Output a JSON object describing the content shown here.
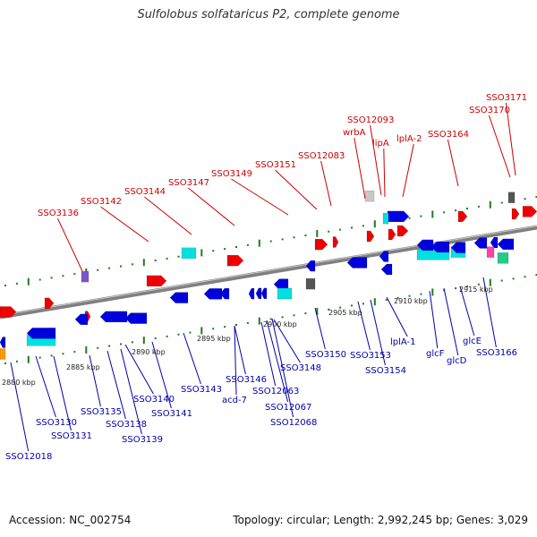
{
  "title": "Sulfolobus solfataricus P2, complete genome",
  "footer": {
    "accession": "Accession: NC_002754",
    "summary": "Topology: circular; Length: 2,992,245 bp; Genes: 3,029"
  },
  "colors": {
    "forward_label": "#cc0000",
    "reverse_label": "#0000aa",
    "backbone": "#808080",
    "tick": "#1f7a1f"
  },
  "scale_labels": [
    "2880 kbp",
    "2885 kbp",
    "2890 kbp",
    "2895 kbp",
    "2900 kbp",
    "2905 kbp",
    "2910 kbp",
    "2915 kbp"
  ],
  "forward_labels": [
    "SSO3136",
    "SSO3142",
    "SSO3144",
    "SSO3147",
    "SSO3149",
    "SSO3151",
    "SSO12083",
    "SSO12093",
    "wrbA",
    "lipA",
    "lplA-2",
    "SSO3164",
    "SSO3170",
    "SSO3171"
  ],
  "reverse_labels": [
    "SSO12018",
    "SSO3130",
    "SSO3131",
    "SSO3135",
    "SSO3138",
    "SSO3139",
    "SSO3140",
    "SSO3141",
    "SSO3143",
    "SSO3146",
    "acd-7",
    "SSO12063",
    "SSO12067",
    "SSO12068",
    "SSO3148",
    "SSO3150",
    "SSO3153",
    "SSO3154",
    "lplA-1",
    "glcF",
    "glcD",
    "glcE",
    "SSO3166"
  ]
}
